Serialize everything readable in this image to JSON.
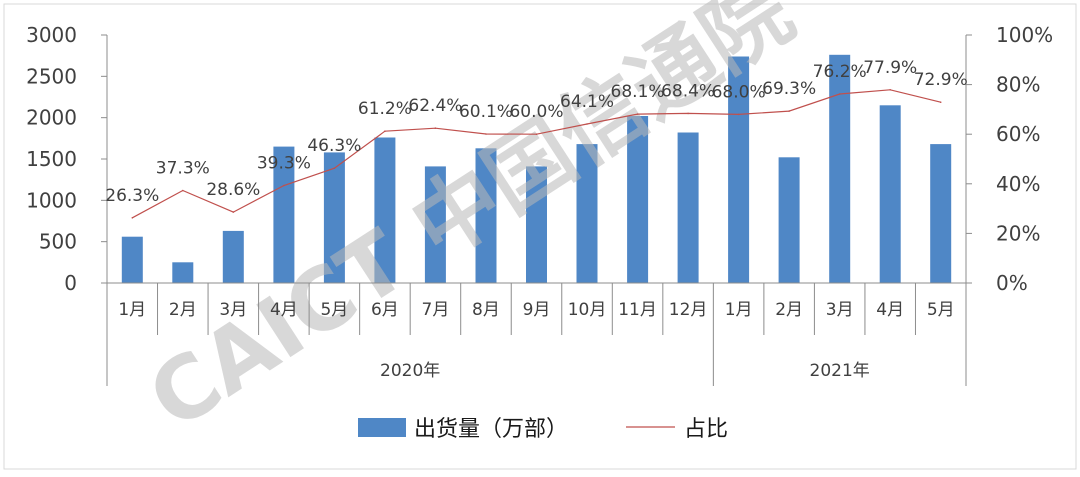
{
  "chart_data": {
    "type": "bar+line",
    "categories": [
      "1月",
      "2月",
      "3月",
      "4月",
      "5月",
      "6月",
      "7月",
      "8月",
      "9月",
      "10月",
      "11月",
      "12月",
      "1月",
      "2月",
      "3月",
      "4月",
      "5月"
    ],
    "groups": [
      {
        "label": "2020年",
        "count": 12
      },
      {
        "label": "2021年",
        "count": 5
      }
    ],
    "series": [
      {
        "name": "出货量（万部）",
        "type": "bar",
        "axis": "left",
        "color": "#4f87c6",
        "values": [
          560,
          250,
          630,
          1650,
          1580,
          1760,
          1410,
          1630,
          1410,
          1680,
          2020,
          1820,
          2740,
          1520,
          2760,
          2150,
          1680
        ]
      },
      {
        "name": "占比",
        "type": "line",
        "axis": "right",
        "color": "#c0504d",
        "values": [
          26.3,
          37.3,
          28.6,
          39.3,
          46.3,
          61.2,
          62.4,
          60.1,
          60.0,
          64.1,
          68.1,
          68.4,
          68.0,
          69.3,
          76.2,
          77.9,
          72.9
        ],
        "labels": [
          "26.3%",
          "37.3%",
          "28.6%",
          "39.3%",
          "46.3%",
          "61.2%",
          "62.4%",
          "60.1%",
          "60.0%",
          "64.1%",
          "68.1%",
          "68.4%",
          "68.0%",
          "69.3%",
          "76.2%",
          "77.9%",
          "72.9%"
        ]
      }
    ],
    "y_left": {
      "ylim": [
        0,
        3000
      ],
      "ticks": [
        "0",
        "500",
        "1000",
        "1500",
        "2000",
        "2500",
        "3000"
      ]
    },
    "y_right": {
      "ylim": [
        0,
        100
      ],
      "ticks": [
        "0%",
        "20%",
        "40%",
        "60%",
        "80%",
        "100%"
      ]
    },
    "grid": false,
    "legend": {
      "position": "bottom",
      "items": [
        "出货量（万部）",
        "占比"
      ]
    }
  },
  "watermark": {
    "text": "CAICT 中国信通院"
  }
}
